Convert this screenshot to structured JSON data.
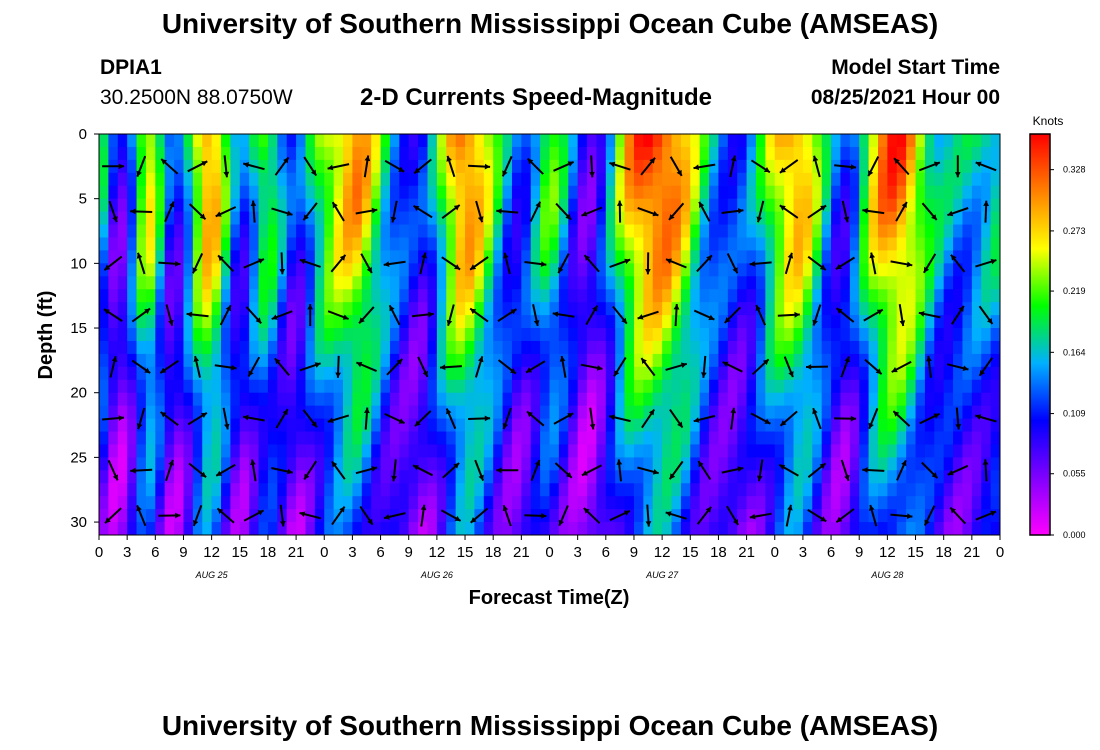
{
  "header": {
    "title_top": "University of Southern Mississippi Ocean Cube (AMSEAS)",
    "title_bottom": "University of Southern Mississippi Ocean Cube (AMSEAS)",
    "station_id": "DPIA1",
    "station_coords": "30.2500N  88.0750W",
    "plot_title": "2-D Currents Speed-Magnitude",
    "model_start_label": "Model Start Time",
    "model_start_value": "08/25/2021 Hour 00"
  },
  "chart_data": {
    "type": "heatmap",
    "title": "2-D Currents Speed-Magnitude",
    "xlabel": "Forecast Time(Z)",
    "ylabel": "Depth (ft)",
    "xlim": [
      0,
      96
    ],
    "ylim": [
      0,
      31
    ],
    "x_tick_values": [
      0,
      3,
      6,
      9,
      12,
      15,
      18,
      21,
      24,
      27,
      30,
      33,
      36,
      39,
      42,
      45,
      48,
      51,
      54,
      57,
      60,
      63,
      66,
      69,
      72,
      75,
      78,
      81,
      84,
      87,
      90,
      93,
      96
    ],
    "x_tick_labels": [
      "0",
      "3",
      "6",
      "9",
      "12",
      "15",
      "18",
      "21",
      "0",
      "3",
      "6",
      "9",
      "12",
      "15",
      "18",
      "21",
      "0",
      "3",
      "6",
      "9",
      "12",
      "15",
      "18",
      "21",
      "0",
      "3",
      "6",
      "9",
      "12",
      "15",
      "18",
      "21",
      "0"
    ],
    "day_labels": [
      {
        "x": 12,
        "text": "AUG 25"
      },
      {
        "x": 36,
        "text": "AUG 26"
      },
      {
        "x": 60,
        "text": "AUG 27"
      },
      {
        "x": 84,
        "text": "AUG 28"
      }
    ],
    "y_ticks": [
      0,
      5,
      10,
      15,
      20,
      25,
      30
    ],
    "colorbar": {
      "unit": "Knots",
      "min": 0.0,
      "max": 0.36,
      "tick_values": [
        0.0,
        0.055,
        0.109,
        0.164,
        0.219,
        0.273,
        0.328
      ],
      "tick_labels": [
        "0.000",
        "0.055",
        "0.109",
        "0.164",
        "0.219",
        "0.273",
        "0.328"
      ],
      "colors": [
        "#ff00ff",
        "#8000ff",
        "#0000ff",
        "#00b0ff",
        "#00ff00",
        "#ffff00",
        "#ff8000",
        "#ff0000"
      ]
    },
    "surface_speed_by_hour": [
      0.22,
      0.12,
      0.07,
      0.1,
      0.2,
      0.28,
      0.25,
      0.14,
      0.09,
      0.13,
      0.22,
      0.3,
      0.32,
      0.26,
      0.17,
      0.11,
      0.14,
      0.21,
      0.23,
      0.19,
      0.13,
      0.1,
      0.14,
      0.2,
      0.24,
      0.27,
      0.29,
      0.31,
      0.3,
      0.26,
      0.21,
      0.17,
      0.14,
      0.12,
      0.1,
      0.12,
      0.18,
      0.25,
      0.31,
      0.33,
      0.31,
      0.27,
      0.22,
      0.17,
      0.13,
      0.12,
      0.15,
      0.2,
      0.23,
      0.2,
      0.15,
      0.1,
      0.07,
      0.09,
      0.14,
      0.2,
      0.27,
      0.31,
      0.34,
      0.35,
      0.35,
      0.33,
      0.3,
      0.26,
      0.21,
      0.17,
      0.15,
      0.13,
      0.12,
      0.13,
      0.16,
      0.21,
      0.26,
      0.29,
      0.31,
      0.3,
      0.26,
      0.2,
      0.14,
      0.11,
      0.12,
      0.18,
      0.25,
      0.3,
      0.33,
      0.34,
      0.32,
      0.28,
      0.23,
      0.19,
      0.17,
      0.16,
      0.16,
      0.17,
      0.18,
      0.19,
      0.19
    ],
    "depth_attenuation": [
      1.0,
      0.95,
      0.85,
      0.72,
      0.6,
      0.5,
      0.42
    ],
    "vector_grid": {
      "hours_spacing": 3,
      "depths": [
        2.5,
        6,
        10,
        14,
        18,
        22,
        26,
        29.5
      ]
    }
  }
}
